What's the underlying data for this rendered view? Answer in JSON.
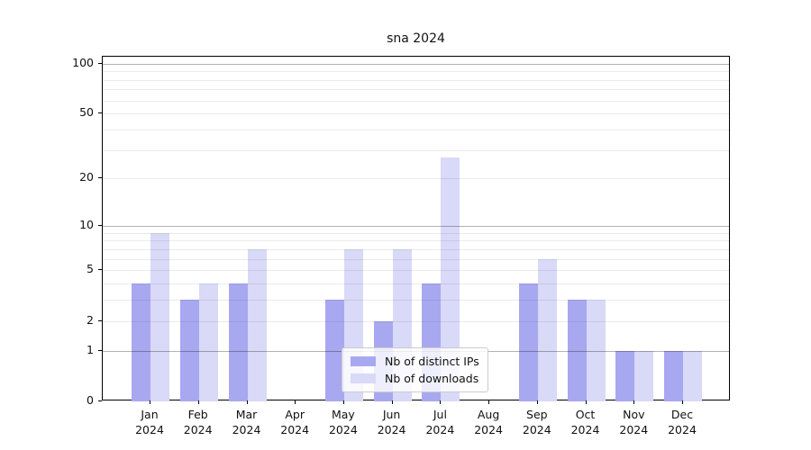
{
  "chart_data": {
    "type": "bar",
    "title": "sna 2024",
    "categories": [
      "Jan",
      "Feb",
      "Mar",
      "Apr",
      "May",
      "Jun",
      "Jul",
      "Aug",
      "Sep",
      "Oct",
      "Nov",
      "Dec"
    ],
    "category_year": "2024",
    "series": [
      {
        "name": "Nb of distinct IPs",
        "color": "#a8a8f0",
        "values": [
          4,
          3,
          4,
          0,
          3,
          2,
          4,
          0,
          4,
          3,
          1,
          1
        ]
      },
      {
        "name": "Nb of downloads",
        "color": "#d9d9f8",
        "values": [
          9,
          4,
          7,
          0,
          7,
          7,
          27,
          0,
          6,
          3,
          1,
          1
        ]
      }
    ],
    "yscale": "log1p",
    "ylabel": "",
    "xlabel": "",
    "yticks": [
      0,
      1,
      2,
      5,
      10,
      20,
      50,
      100
    ],
    "ylim": [
      0,
      110
    ],
    "grid": {
      "major": [
        1,
        10,
        100
      ],
      "minor": [
        2,
        3,
        4,
        5,
        6,
        7,
        8,
        9,
        20,
        30,
        40,
        50,
        60,
        70,
        80,
        90
      ]
    },
    "legend_position": "lower center"
  }
}
